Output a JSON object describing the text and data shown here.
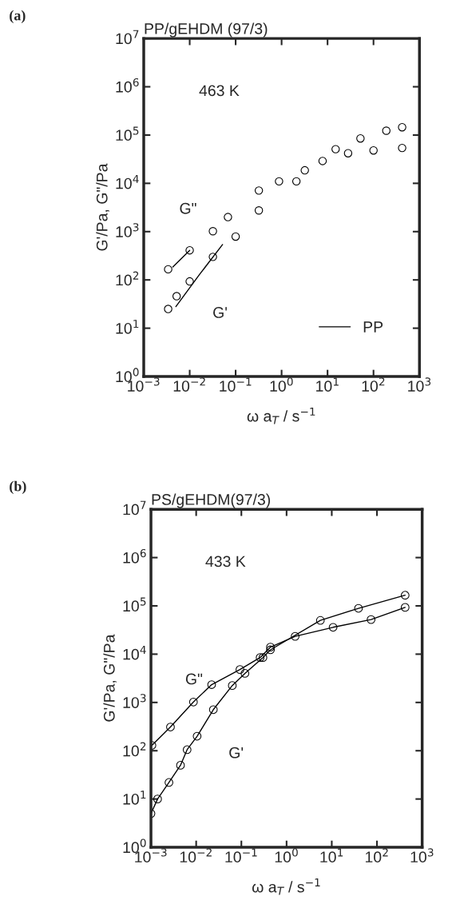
{
  "chart_data": [
    {
      "type": "scatter",
      "title": "PP/gEHDM (97/3)",
      "xlabel": "ω a$_{T}$ / s$^{−1}$",
      "ylabel": "G'/Pa, G\"/Pa",
      "log": "xy",
      "legend": "bottom right",
      "marker": "circle",
      "annotations": [
        "(a)",
        "463 K"
      ],
      "xlim": [
        0.001,
        1000
      ],
      "ylim": [
        1,
        10000000
      ],
      "xticks": [
        {
          "value": 0.001,
          "label": "10$^{−3}$"
        },
        {
          "value": 0.01,
          "label": "10$^{−2}$"
        },
        {
          "value": 0.1,
          "label": "10$^{−1}$"
        },
        {
          "value": 1,
          "label": "10$^{0}$"
        },
        {
          "value": 10,
          "label": "10$^{1}$"
        },
        {
          "value": 100,
          "label": "10$^{2}$"
        },
        {
          "value": 1000,
          "label": "10$^{3}$"
        }
      ],
      "yticks": [
        {
          "value": 1,
          "label": "10$^{0}$"
        },
        {
          "value": 10,
          "label": "10$^{1}$"
        },
        {
          "value": 100,
          "label": "10$^{2}$"
        },
        {
          "value": 1000,
          "label": "10$^{3}$"
        },
        {
          "value": 10000,
          "label": "10$^{4}$"
        },
        {
          "value": 100000,
          "label": "10$^{5}$"
        },
        {
          "value": 1000000,
          "label": "10$^{6}$"
        },
        {
          "value": 10000000,
          "label": "10$^{7}$"
        }
      ],
      "series": [
        {
          "name": "G\"",
          "type": "scatter",
          "color": "#000000",
          "x": [
            0.0034,
            0.01,
            0.032,
            0.068,
            0.32,
            0.88,
            3.2,
            7.8,
            28,
            100,
            420
          ],
          "values": [
            166,
            410,
            1020,
            2000,
            7100,
            11000,
            18600,
            29000,
            42000,
            48000,
            54000
          ]
        },
        {
          "name": "G'",
          "type": "scatter",
          "color": "#000000",
          "x": [
            0.0034,
            0.0052,
            0.01,
            0.032,
            0.1,
            0.32,
            2.1,
            15,
            52,
            190,
            420
          ],
          "values": [
            25,
            46,
            93,
            300,
            790,
            2750,
            11000,
            51000,
            85000,
            123000,
            145000
          ]
        },
        {
          "name": "PP",
          "type": "line",
          "marker": "none",
          "color": "#000000",
          "x": [
            0.005,
            0.016,
            0.052
          ],
          "values": [
            28,
            126,
            540
          ]
        },
        {
          "type": "line",
          "marker": "none",
          "color": "#000000",
          "x": [
            0.0043,
            0.01
          ],
          "values": [
            186,
            410
          ]
        }
      ]
    },
    {
      "type": "line",
      "title": "PS/gEHDM(97/3)",
      "xlabel": "ω a$_{T}$ / s$^{−1}$",
      "ylabel": "G'/Pa, G\"/Pa",
      "log": "xy",
      "marker": "circle",
      "annotations": [
        "(b)",
        "433 K"
      ],
      "xlim": [
        0.001,
        1000
      ],
      "ylim": [
        1,
        10000000
      ],
      "xticks": [
        {
          "value": 0.001,
          "label": "10$^{−3}$"
        },
        {
          "value": 0.01,
          "label": "10$^{−2}$"
        },
        {
          "value": 0.1,
          "label": "10$^{−1}$"
        },
        {
          "value": 1,
          "label": "10$^{0}$"
        },
        {
          "value": 10,
          "label": "10$^{1}$"
        },
        {
          "value": 100,
          "label": "10$^{2}$"
        },
        {
          "value": 1000,
          "label": "10$^{3}$"
        }
      ],
      "yticks": [
        {
          "value": 1,
          "label": "10$^{0}$"
        },
        {
          "value": 10,
          "label": "10$^{1}$"
        },
        {
          "value": 100,
          "label": "10$^{2}$"
        },
        {
          "value": 1000,
          "label": "10$^{3}$"
        },
        {
          "value": 10000,
          "label": "10$^{4}$"
        },
        {
          "value": 100000,
          "label": "10$^{5}$"
        },
        {
          "value": 1000000,
          "label": "10$^{6}$"
        },
        {
          "value": 10000000,
          "label": "10$^{7}$"
        }
      ],
      "series": [
        {
          "name": "G\"",
          "color": "#000000",
          "x": [
            0.00105,
            0.0027,
            0.0087,
            0.022,
            0.093,
            0.26,
            0.44,
            1.55,
            10.7,
            74,
            420
          ],
          "values": [
            129,
            310,
            1020,
            2340,
            4800,
            8500,
            14000,
            23400,
            36000,
            52000,
            93000
          ]
        },
        {
          "name": "G'",
          "color": "#000000",
          "x": [
            0.001,
            0.0014,
            0.0025,
            0.0045,
            0.0063,
            0.0105,
            0.024,
            0.063,
            0.12,
            0.3,
            0.44,
            5.6,
            39,
            420
          ],
          "values": [
            5,
            10,
            22,
            50,
            105,
            200,
            710,
            2240,
            4000,
            8500,
            12300,
            50000,
            89000,
            166000
          ]
        }
      ]
    }
  ]
}
